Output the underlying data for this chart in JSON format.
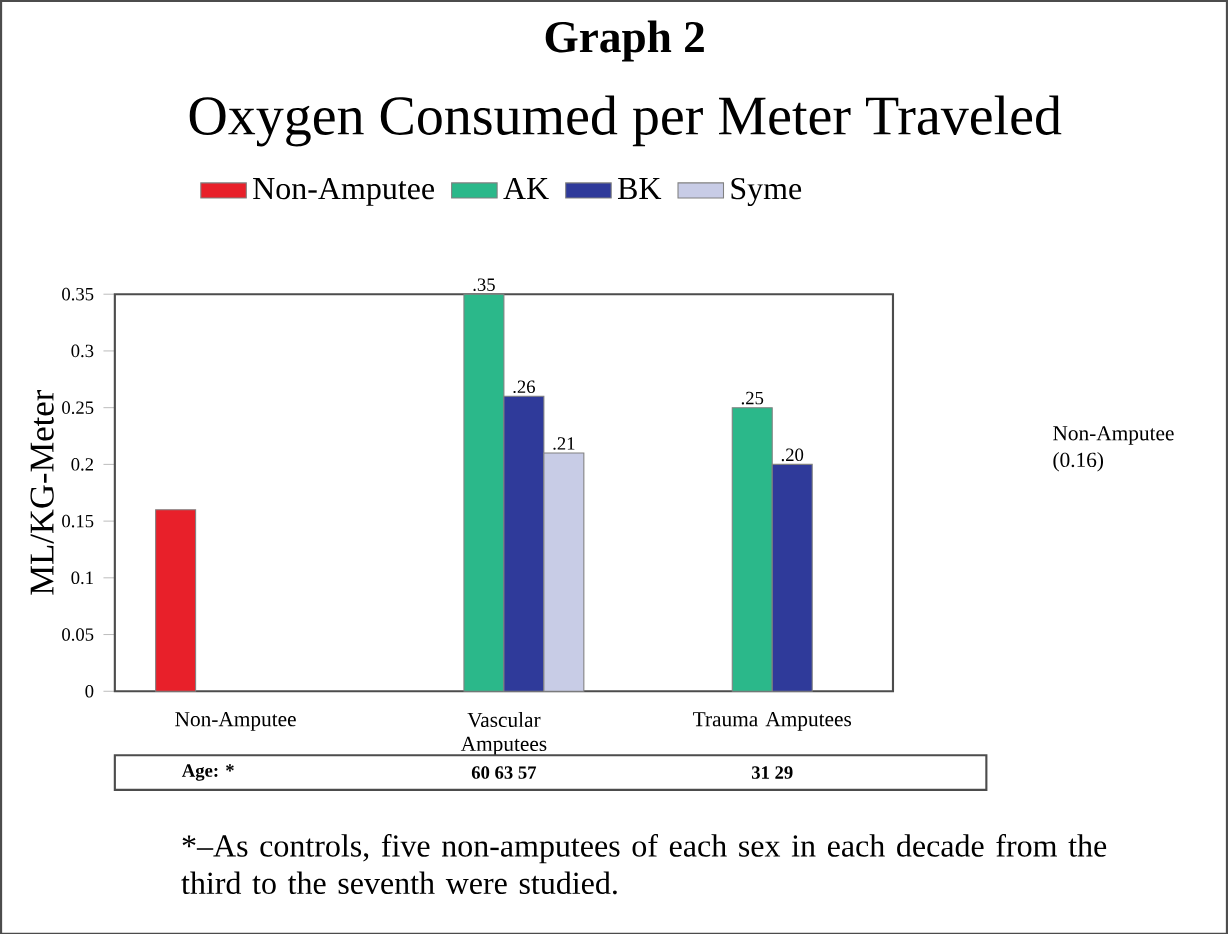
{
  "chart_data": {
    "type": "bar",
    "title": "Graph 2",
    "subtitle": "Oxygen Consumed per Meter Traveled",
    "ylabel": "ML/KG-Meter",
    "categories": [
      "Non-Amputee",
      "Vascular Amputees",
      "Trauma Amputees"
    ],
    "series": [
      {
        "name": "Non-Amputee",
        "color": "#e8202a",
        "values": [
          0.16,
          null,
          null
        ],
        "value_labels": [
          null,
          null,
          null
        ]
      },
      {
        "name": "AK",
        "color": "#2bb88a",
        "values": [
          null,
          0.35,
          0.25
        ],
        "value_labels": [
          null,
          ".35",
          ".25"
        ]
      },
      {
        "name": "BK",
        "color": "#2f3a9a",
        "values": [
          null,
          0.26,
          0.2
        ],
        "value_labels": [
          null,
          ".26",
          ".20"
        ]
      },
      {
        "name": "Syme",
        "color": "#c8cce6",
        "values": [
          null,
          0.21,
          null
        ],
        "value_labels": [
          null,
          ".21",
          null
        ]
      }
    ],
    "ylim": [
      0,
      0.35
    ],
    "yticks": [
      0,
      0.05,
      0.1,
      0.15,
      0.2,
      0.25,
      0.3,
      0.35
    ],
    "legend": "top",
    "grid": false,
    "annotations": [
      "Non-Amputee (0.16)",
      "Age: *",
      "60 63 57",
      "31 29",
      "*–As controls, five non-amputees of each sex in each decade from the third to the seventh were studied."
    ]
  }
}
